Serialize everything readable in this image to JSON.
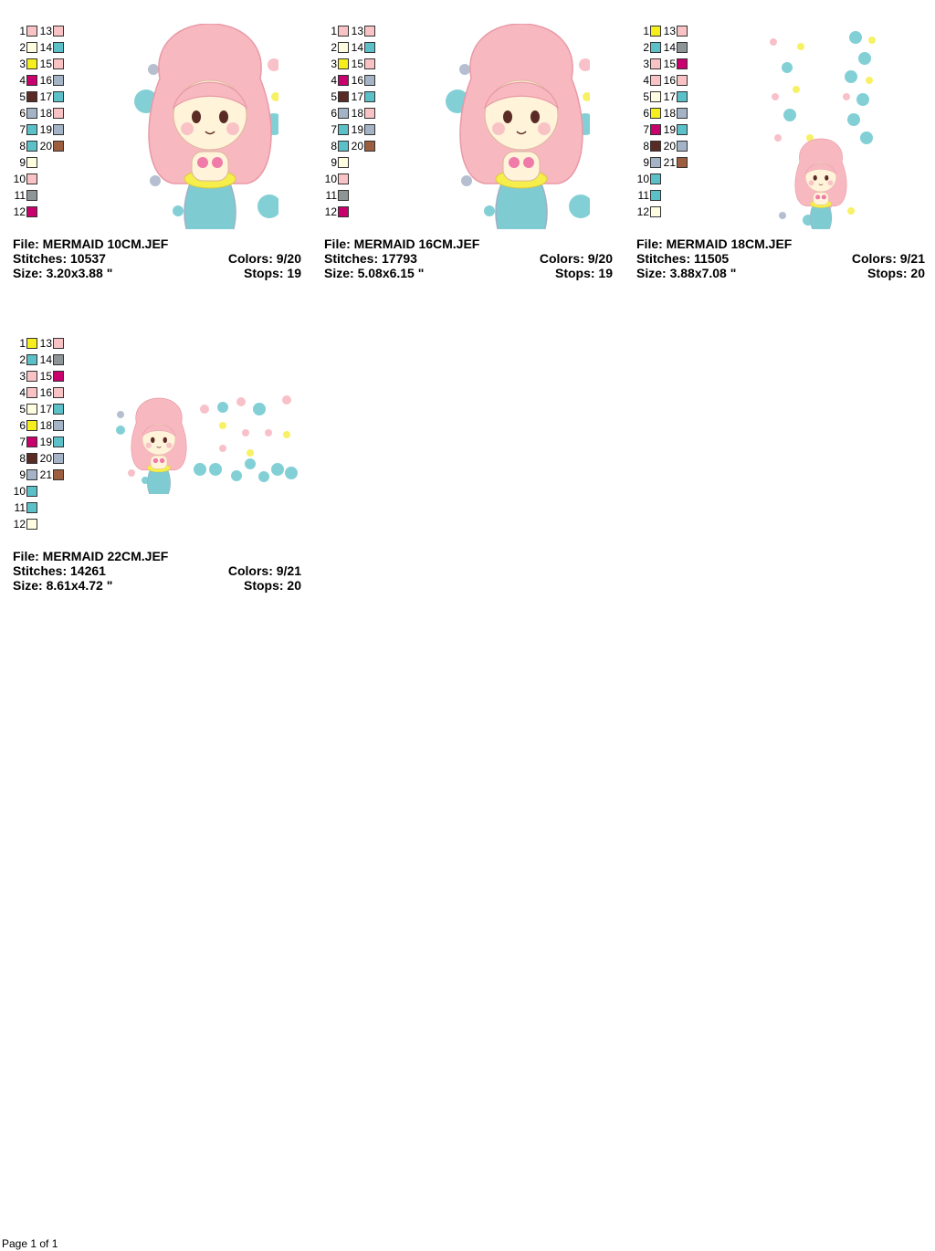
{
  "designs": [
    {
      "file": "File: MERMAID 10CM.JEF",
      "stitches": "Stitches: 10537",
      "colors": "Colors: 9/20",
      "size": "Size: 3.20x3.88 \"",
      "stops": "Stops: 19",
      "left_col": [
        {
          "n": "1",
          "c": "#f9c3c6"
        },
        {
          "n": "2",
          "c": "#fffde0"
        },
        {
          "n": "3",
          "c": "#f6ee1d"
        },
        {
          "n": "4",
          "c": "#c8006e"
        },
        {
          "n": "5",
          "c": "#5a2b24"
        },
        {
          "n": "6",
          "c": "#a5b3c6"
        },
        {
          "n": "7",
          "c": "#5cc0c8"
        },
        {
          "n": "8",
          "c": "#5cc0c8"
        },
        {
          "n": "9",
          "c": "#fffde0"
        },
        {
          "n": "10",
          "c": "#f9c3c6"
        },
        {
          "n": "11",
          "c": "#8e9597"
        },
        {
          "n": "12",
          "c": "#c8006e"
        }
      ],
      "right_col": [
        {
          "n": "13",
          "c": "#f9c3c6"
        },
        {
          "n": "14",
          "c": "#5cc0c8"
        },
        {
          "n": "15",
          "c": "#f9c3c6"
        },
        {
          "n": "16",
          "c": "#a5b3c6"
        },
        {
          "n": "17",
          "c": "#5cc0c8"
        },
        {
          "n": "18",
          "c": "#f9c3c6"
        },
        {
          "n": "19",
          "c": "#a5b3c6"
        },
        {
          "n": "20",
          "c": "#9c5e3e"
        }
      ]
    },
    {
      "file": "File: MERMAID 16CM.JEF",
      "stitches": "Stitches: 17793",
      "colors": "Colors: 9/20",
      "size": "Size: 5.08x6.15 \"",
      "stops": "Stops: 19",
      "left_col": [
        {
          "n": "1",
          "c": "#f9c3c6"
        },
        {
          "n": "2",
          "c": "#fffde0"
        },
        {
          "n": "3",
          "c": "#f6ee1d"
        },
        {
          "n": "4",
          "c": "#c8006e"
        },
        {
          "n": "5",
          "c": "#5a2b24"
        },
        {
          "n": "6",
          "c": "#a5b3c6"
        },
        {
          "n": "7",
          "c": "#5cc0c8"
        },
        {
          "n": "8",
          "c": "#5cc0c8"
        },
        {
          "n": "9",
          "c": "#fffde0"
        },
        {
          "n": "10",
          "c": "#f9c3c6"
        },
        {
          "n": "11",
          "c": "#8e9597"
        },
        {
          "n": "12",
          "c": "#c8006e"
        }
      ],
      "right_col": [
        {
          "n": "13",
          "c": "#f9c3c6"
        },
        {
          "n": "14",
          "c": "#5cc0c8"
        },
        {
          "n": "15",
          "c": "#f9c3c6"
        },
        {
          "n": "16",
          "c": "#a5b3c6"
        },
        {
          "n": "17",
          "c": "#5cc0c8"
        },
        {
          "n": "18",
          "c": "#f9c3c6"
        },
        {
          "n": "19",
          "c": "#a5b3c6"
        },
        {
          "n": "20",
          "c": "#9c5e3e"
        }
      ]
    },
    {
      "file": "File: MERMAID 18CM.JEF",
      "stitches": "Stitches: 11505",
      "colors": "Colors: 9/21",
      "size": "Size: 3.88x7.08 \"",
      "stops": "Stops: 20",
      "left_col": [
        {
          "n": "1",
          "c": "#f6ee1d"
        },
        {
          "n": "2",
          "c": "#5cc0c8"
        },
        {
          "n": "3",
          "c": "#f9c3c6"
        },
        {
          "n": "4",
          "c": "#f9c3c6"
        },
        {
          "n": "5",
          "c": "#fffde0"
        },
        {
          "n": "6",
          "c": "#f6ee1d"
        },
        {
          "n": "7",
          "c": "#c8006e"
        },
        {
          "n": "8",
          "c": "#5a2b24"
        },
        {
          "n": "9",
          "c": "#a5b3c6"
        },
        {
          "n": "10",
          "c": "#5cc0c8"
        },
        {
          "n": "11",
          "c": "#5cc0c8"
        },
        {
          "n": "12",
          "c": "#fffde0"
        }
      ],
      "right_col": [
        {
          "n": "13",
          "c": "#f9c3c6"
        },
        {
          "n": "14",
          "c": "#8e9597"
        },
        {
          "n": "15",
          "c": "#c8006e"
        },
        {
          "n": "16",
          "c": "#f9c3c6"
        },
        {
          "n": "17",
          "c": "#5cc0c8"
        },
        {
          "n": "18",
          "c": "#a5b3c6"
        },
        {
          "n": "19",
          "c": "#5cc0c8"
        },
        {
          "n": "20",
          "c": "#a5b3c6"
        },
        {
          "n": "21",
          "c": "#9c5e3e"
        }
      ]
    },
    {
      "file": "File: MERMAID 22CM.JEF",
      "stitches": "Stitches: 14261",
      "colors": "Colors: 9/21",
      "size": "Size: 8.61x4.72 \"",
      "stops": "Stops: 20",
      "left_col": [
        {
          "n": "1",
          "c": "#f6ee1d"
        },
        {
          "n": "2",
          "c": "#5cc0c8"
        },
        {
          "n": "3",
          "c": "#f9c3c6"
        },
        {
          "n": "4",
          "c": "#f9c3c6"
        },
        {
          "n": "5",
          "c": "#fffde0"
        },
        {
          "n": "6",
          "c": "#f6ee1d"
        },
        {
          "n": "7",
          "c": "#c8006e"
        },
        {
          "n": "8",
          "c": "#5a2b24"
        },
        {
          "n": "9",
          "c": "#a5b3c6"
        },
        {
          "n": "10",
          "c": "#5cc0c8"
        },
        {
          "n": "11",
          "c": "#5cc0c8"
        },
        {
          "n": "12",
          "c": "#fffde0"
        }
      ],
      "right_col": [
        {
          "n": "13",
          "c": "#f9c3c6"
        },
        {
          "n": "14",
          "c": "#8e9597"
        },
        {
          "n": "15",
          "c": "#c8006e"
        },
        {
          "n": "16",
          "c": "#f9c3c6"
        },
        {
          "n": "17",
          "c": "#5cc0c8"
        },
        {
          "n": "18",
          "c": "#a5b3c6"
        },
        {
          "n": "19",
          "c": "#5cc0c8"
        },
        {
          "n": "20",
          "c": "#a5b3c6"
        },
        {
          "n": "21",
          "c": "#9c5e3e"
        }
      ]
    }
  ],
  "palette": {
    "hair": "#f8b8c0",
    "hair_dark": "#e89aa6",
    "skin": "#fff3da",
    "tail": "#7ecbd2",
    "tail_dark": "#9fb0c6",
    "bikini": "#f07aa8",
    "bubble_teal": "#6cc8cf",
    "bubble_yellow": "#f6ee4a",
    "bubble_pink": "#f7b6c0",
    "bubble_grey": "#a8b4c8",
    "eye": "#5a2b24"
  },
  "footer": "Page 1 of 1"
}
